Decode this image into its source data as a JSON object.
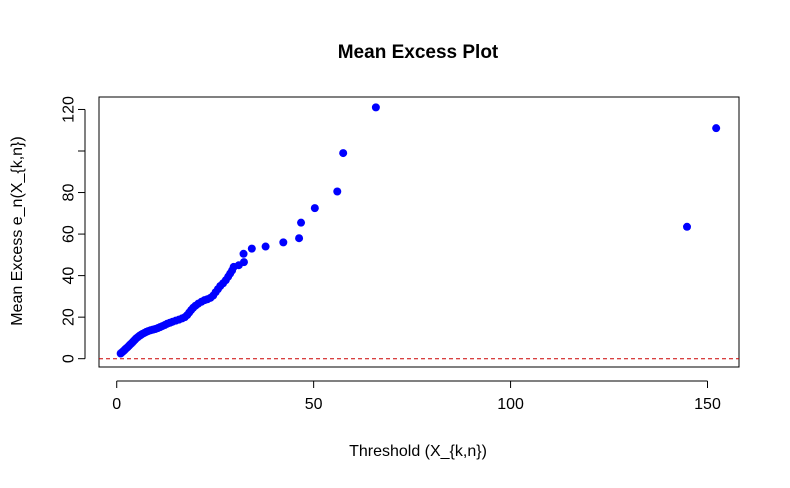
{
  "chart_data": {
    "type": "scatter",
    "title": "Mean Excess Plot",
    "xlabel": "Threshold (X_{k,n})",
    "ylabel": "Mean Excess e_n(X_{k,n})",
    "xlim": [
      -4.5,
      158
    ],
    "ylim": [
      -4,
      126
    ],
    "x_ticks": [
      0,
      50,
      100,
      150
    ],
    "y_ticks": [
      0,
      20,
      40,
      60,
      80,
      100,
      120
    ],
    "y_tick_labels": [
      "0",
      "20",
      "40",
      "60",
      "80",
      "",
      "120"
    ],
    "grid": false,
    "marker_color": "#0000ff",
    "reference_line": {
      "y": 0,
      "color": "#cc0000",
      "style": "dashed"
    },
    "points": [
      [
        1.0,
        2.5
      ],
      [
        1.3,
        3.0
      ],
      [
        1.6,
        3.5
      ],
      [
        1.9,
        4.0
      ],
      [
        2.2,
        4.6
      ],
      [
        2.5,
        5.1
      ],
      [
        2.8,
        5.6
      ],
      [
        3.1,
        6.2
      ],
      [
        3.4,
        6.8
      ],
      [
        3.7,
        7.3
      ],
      [
        4.0,
        7.9
      ],
      [
        4.3,
        8.5
      ],
      [
        4.6,
        9.1
      ],
      [
        4.9,
        9.7
      ],
      [
        5.3,
        10.3
      ],
      [
        5.7,
        10.9
      ],
      [
        6.1,
        11.4
      ],
      [
        6.5,
        11.9
      ],
      [
        7.0,
        12.4
      ],
      [
        7.5,
        12.9
      ],
      [
        8.0,
        13.3
      ],
      [
        8.6,
        13.7
      ],
      [
        9.2,
        14.0
      ],
      [
        9.8,
        14.3
      ],
      [
        10.4,
        14.7
      ],
      [
        11.0,
        15.2
      ],
      [
        11.6,
        15.7
      ],
      [
        12.2,
        16.2
      ],
      [
        12.8,
        16.8
      ],
      [
        13.5,
        17.3
      ],
      [
        14.2,
        17.8
      ],
      [
        15.0,
        18.3
      ],
      [
        15.8,
        18.8
      ],
      [
        16.6,
        19.4
      ],
      [
        17.3,
        20.0
      ],
      [
        17.9,
        21.0
      ],
      [
        18.4,
        22.2
      ],
      [
        18.9,
        23.4
      ],
      [
        19.4,
        24.5
      ],
      [
        20.0,
        25.5
      ],
      [
        20.7,
        26.5
      ],
      [
        21.5,
        27.4
      ],
      [
        22.3,
        28.2
      ],
      [
        23.0,
        28.6
      ],
      [
        23.8,
        29.3
      ],
      [
        24.5,
        30.4
      ],
      [
        25.1,
        32.0
      ],
      [
        25.7,
        33.5
      ],
      [
        26.3,
        35.0
      ],
      [
        27.0,
        36.3
      ],
      [
        27.7,
        37.8
      ],
      [
        28.3,
        39.5
      ],
      [
        28.8,
        41.0
      ],
      [
        29.3,
        42.5
      ],
      [
        29.7,
        44.2
      ],
      [
        31.0,
        45.0
      ],
      [
        32.3,
        46.5
      ],
      [
        32.2,
        50.5
      ],
      [
        34.3,
        53.0
      ],
      [
        37.8,
        54.0
      ],
      [
        42.3,
        56.0
      ],
      [
        46.3,
        58.0
      ],
      [
        46.8,
        65.5
      ],
      [
        50.3,
        72.5
      ],
      [
        56.0,
        80.5
      ],
      [
        57.5,
        99.0
      ],
      [
        65.8,
        121.0
      ],
      [
        144.8,
        63.5
      ],
      [
        152.2,
        111.0
      ]
    ]
  }
}
